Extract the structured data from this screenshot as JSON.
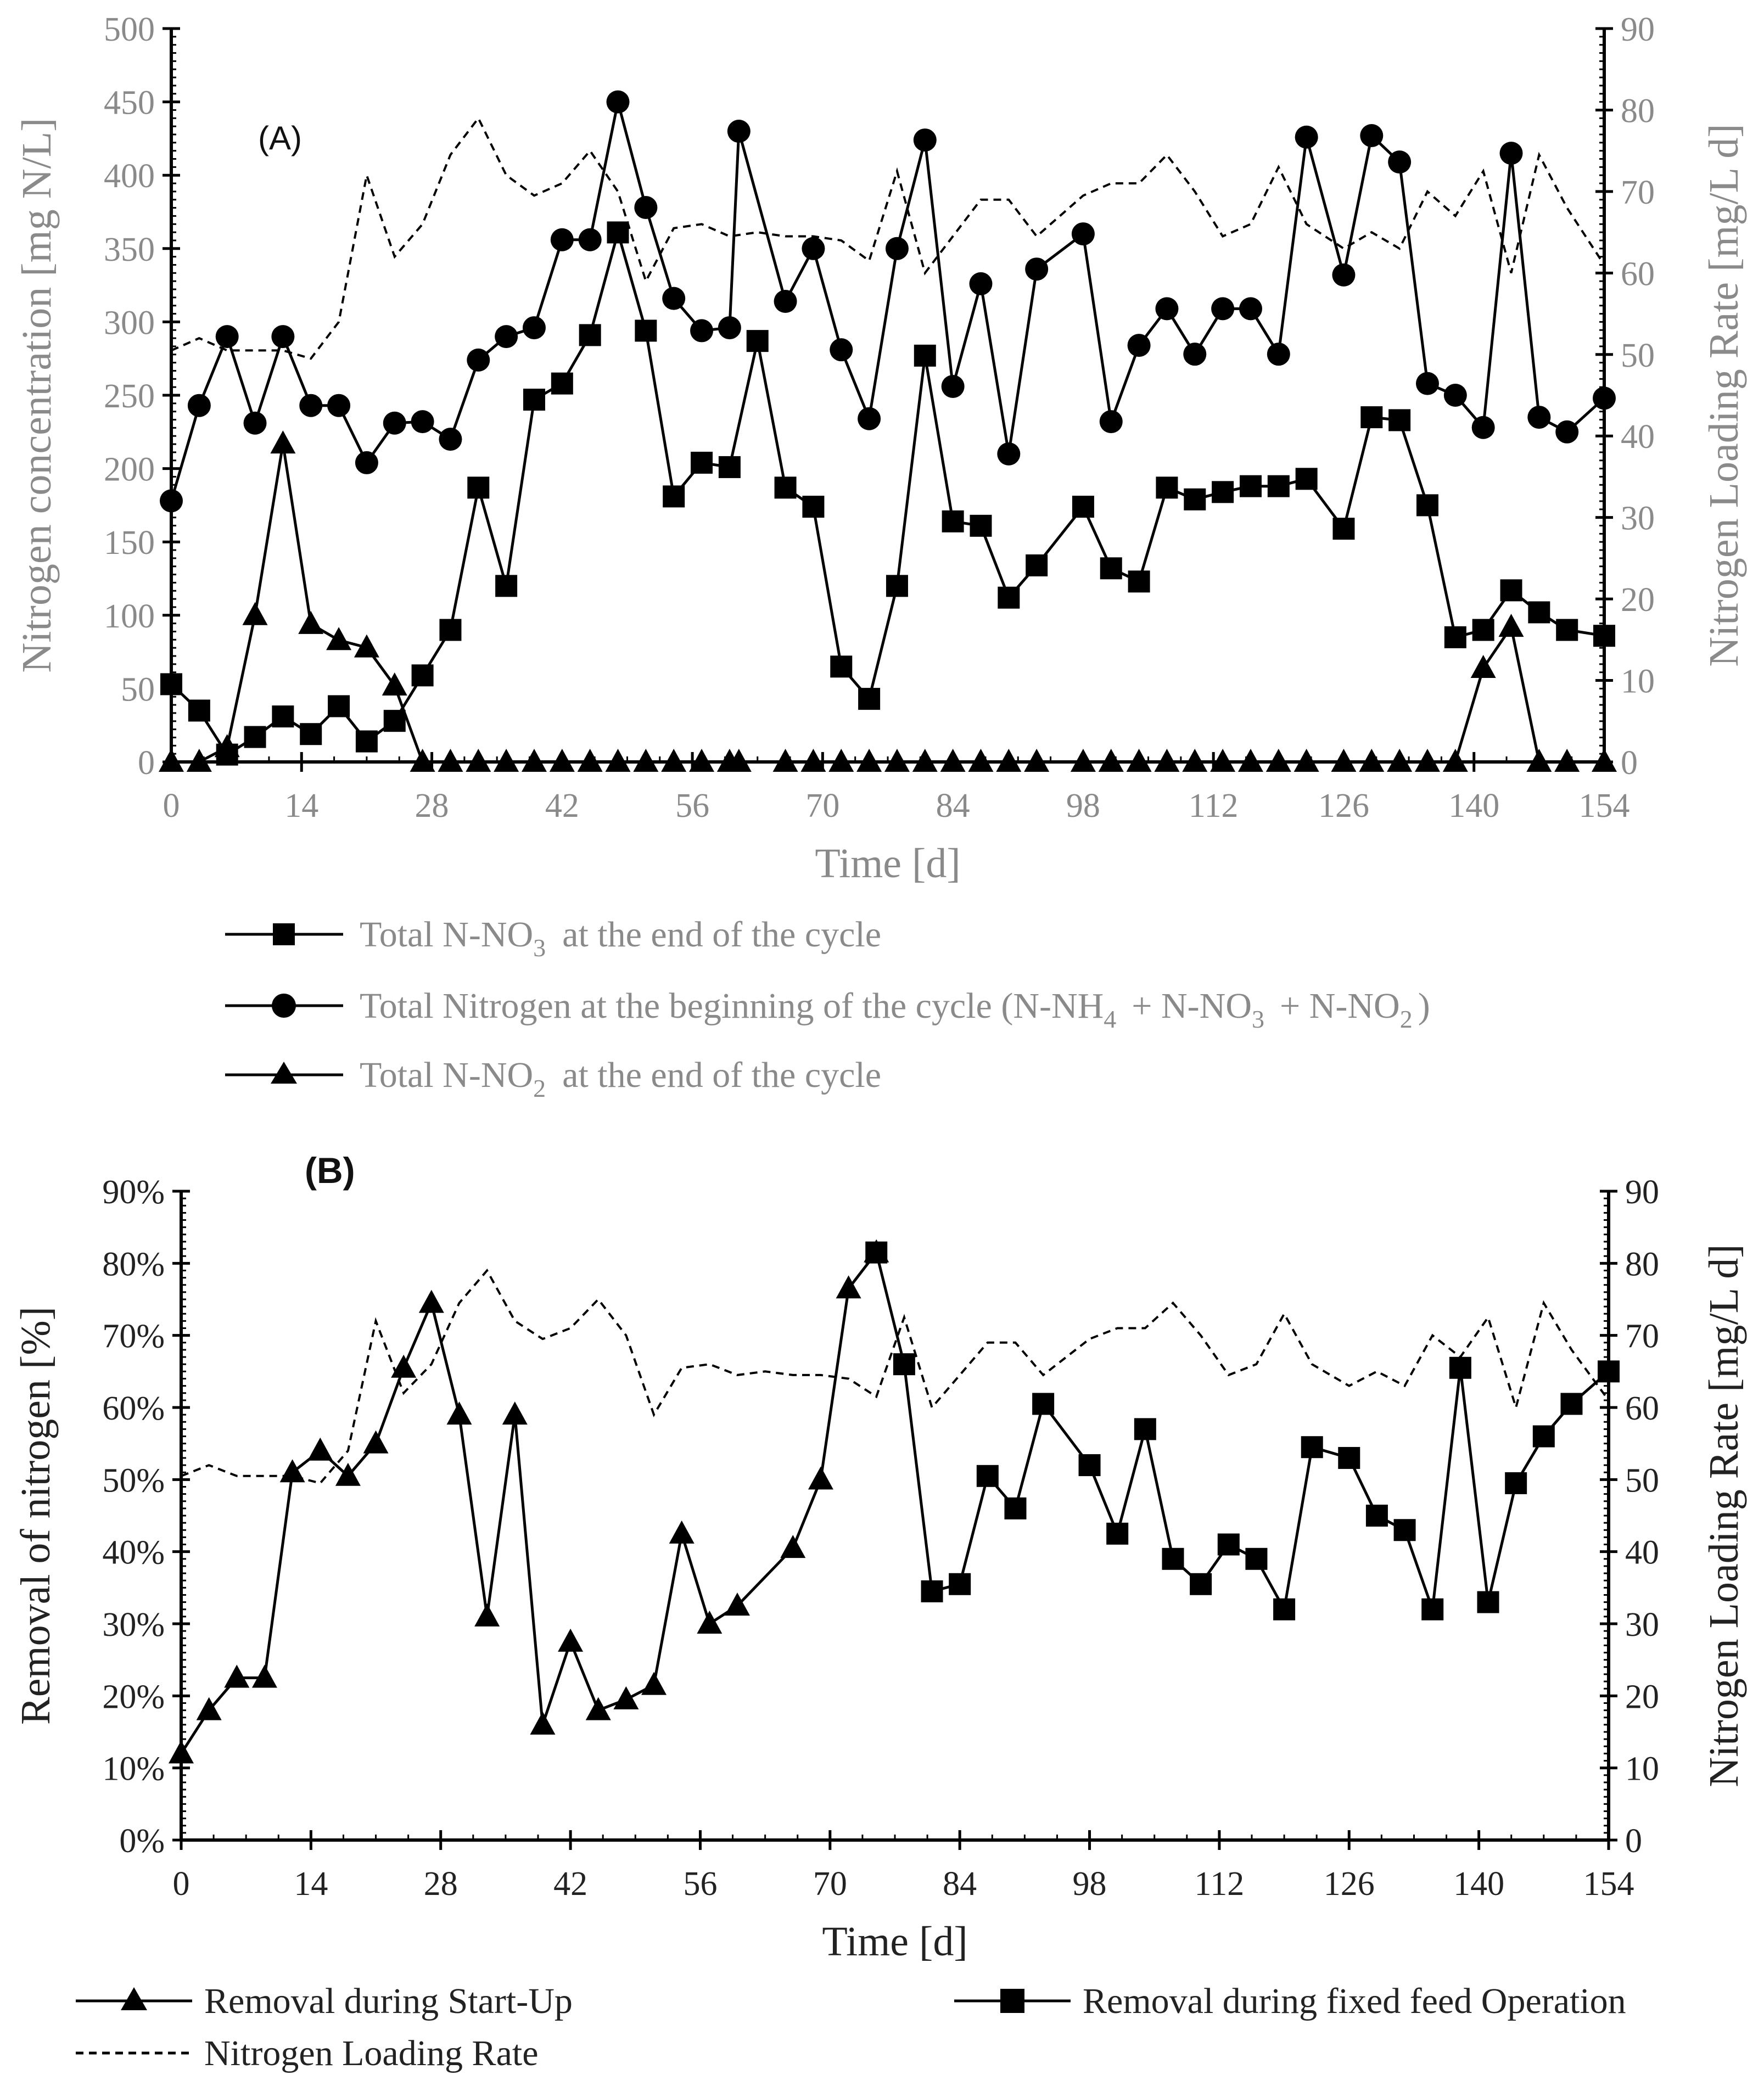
{
  "chart_data": [
    {
      "panel": "A",
      "panel_label": "(A)",
      "type": "line",
      "xlabel": "Time [d]",
      "ylabel_left": "Nitrogen concentration [mg N/L]",
      "ylabel_right": "Nitrogen Loading Rate  [mg/L d]",
      "xlim": [
        0,
        154
      ],
      "ylim_left": [
        0,
        500
      ],
      "ylim_right": [
        0,
        90
      ],
      "xticks": [
        0,
        14,
        28,
        42,
        56,
        70,
        84,
        98,
        112,
        126,
        140,
        154
      ],
      "yticks_left": [
        0,
        50,
        100,
        150,
        200,
        250,
        300,
        350,
        400,
        450,
        500
      ],
      "yticks_right": [
        0,
        10,
        20,
        30,
        40,
        50,
        60,
        70,
        80,
        90
      ],
      "series": [
        {
          "name": "Total N-NO3 at the end of the cycle",
          "legend_main": "Total N-NO",
          "legend_sub": "3",
          "legend_rest": "at the end of the cycle",
          "marker": "square",
          "axis": "left",
          "x": [
            0,
            3,
            6,
            9,
            12,
            15,
            18,
            21,
            24,
            27,
            30,
            33,
            36,
            39,
            42,
            45,
            48,
            51,
            54,
            57,
            60,
            63,
            66,
            69,
            72,
            75,
            78,
            81,
            84,
            87,
            90,
            93,
            98,
            101,
            104,
            107,
            110,
            113,
            116,
            119,
            122,
            126,
            129,
            132,
            135,
            138,
            141,
            144,
            147,
            150,
            154
          ],
          "y": [
            53,
            35,
            5,
            17,
            31,
            19,
            38,
            14,
            28,
            59,
            90,
            187,
            120,
            247,
            258,
            291,
            361,
            294,
            181,
            204,
            201,
            287,
            187,
            174,
            65,
            43,
            120,
            277,
            164,
            161,
            112,
            134,
            174,
            132,
            123,
            187,
            179,
            184,
            188,
            188,
            193,
            159,
            235,
            233,
            175,
            85,
            90,
            117,
            102,
            90,
            86
          ]
        },
        {
          "name": "Total Nitrogen at the beginning of the cycle (N-NH4 + N-NO3 + N-NO2)",
          "legend_main": "Total Nitrogen at the beginning of the cycle (N-NH",
          "legend_sub1": "4",
          "legend_mid1": "+ N-NO",
          "legend_sub2": "3",
          "legend_mid2": "+ N-NO",
          "legend_sub3": "2",
          "legend_end": ")",
          "marker": "circle",
          "axis": "left",
          "x": [
            0,
            3,
            6,
            9,
            12,
            15,
            18,
            21,
            24,
            27,
            30,
            33,
            36,
            39,
            42,
            45,
            48,
            51,
            54,
            57,
            60,
            61,
            66,
            69,
            72,
            75,
            78,
            81,
            84,
            87,
            90,
            93,
            98,
            101,
            104,
            107,
            110,
            113,
            116,
            119,
            122,
            126,
            129,
            132,
            135,
            138,
            141,
            144,
            147,
            150,
            154
          ],
          "y": [
            178,
            243,
            290,
            231,
            290,
            243,
            243,
            204,
            231,
            232,
            220,
            274,
            290,
            296,
            356,
            356,
            450,
            378,
            316,
            294,
            296,
            430,
            314,
            350,
            281,
            234,
            350,
            424,
            256,
            326,
            210,
            336,
            360,
            232,
            284,
            309,
            278,
            309,
            309,
            278,
            426,
            332,
            427,
            409,
            258,
            250,
            228,
            415,
            235,
            225,
            248
          ]
        },
        {
          "name": "Total N-NO2 at the end of the cycle",
          "legend_main": "Total N-NO",
          "legend_sub": "2",
          "legend_rest": "at the end of the cycle",
          "marker": "triangle",
          "axis": "left",
          "x": [
            0,
            3,
            6,
            9,
            12,
            15,
            18,
            21,
            24,
            27,
            30,
            33,
            36,
            39,
            42,
            45,
            48,
            51,
            54,
            57,
            60,
            61,
            66,
            69,
            72,
            75,
            78,
            81,
            84,
            87,
            90,
            93,
            98,
            101,
            104,
            107,
            110,
            113,
            116,
            119,
            122,
            126,
            129,
            132,
            135,
            138,
            141,
            144,
            147,
            150,
            154
          ],
          "y": [
            0,
            0,
            10,
            100,
            217,
            94,
            83,
            78,
            52,
            0,
            0,
            0,
            0,
            0,
            0,
            0,
            0,
            0,
            0,
            0,
            0,
            0,
            0,
            0,
            0,
            0,
            0,
            0,
            0,
            0,
            0,
            0,
            0,
            0,
            0,
            0,
            0,
            0,
            0,
            0,
            0,
            0,
            0,
            0,
            0,
            0,
            64,
            92,
            0,
            0,
            0
          ]
        },
        {
          "name": "Nitrogen Loading Rate",
          "marker": "none",
          "style": "dashed",
          "axis": "right",
          "x": [
            0,
            3,
            6,
            9,
            12,
            15,
            18,
            21,
            24,
            27,
            30,
            33,
            36,
            39,
            42,
            45,
            48,
            51,
            54,
            57,
            60,
            63,
            66,
            69,
            72,
            75,
            78,
            81,
            84,
            87,
            90,
            93,
            98,
            101,
            104,
            107,
            110,
            113,
            116,
            119,
            122,
            126,
            129,
            132,
            135,
            138,
            141,
            144,
            147,
            150,
            154
          ],
          "y": [
            50.5,
            52,
            50.5,
            50.5,
            50.5,
            49.5,
            54,
            72,
            62,
            66,
            74.5,
            79,
            72,
            69.5,
            71,
            75,
            70,
            59,
            65.5,
            66,
            64.5,
            65,
            64.5,
            64.5,
            64,
            61.5,
            72.5,
            60,
            64.5,
            69,
            69,
            64.5,
            69.5,
            71,
            71,
            74.5,
            70,
            64.5,
            66,
            73,
            66,
            63,
            65,
            63,
            70,
            67,
            72.5,
            60,
            74.5,
            68,
            61
          ]
        }
      ]
    },
    {
      "panel": "B",
      "panel_label": "(B)",
      "type": "line",
      "xlabel": "Time [d]",
      "ylabel_left": "Removal of nitrogen [%]",
      "ylabel_right": "Nitrogen Loading Rate [mg/L d]",
      "xlim": [
        0,
        154
      ],
      "ylim_left": [
        0,
        90
      ],
      "ylim_right": [
        0,
        90
      ],
      "xticks": [
        0,
        14,
        28,
        42,
        56,
        70,
        84,
        98,
        112,
        126,
        140,
        154
      ],
      "yticks_left": [
        "0%",
        "10%",
        "20%",
        "30%",
        "40%",
        "50%",
        "60%",
        "70%",
        "80%",
        "90%"
      ],
      "yticks_right": [
        0,
        10,
        20,
        30,
        40,
        50,
        60,
        70,
        80,
        90
      ],
      "series": [
        {
          "name": "Removal during Start-Up",
          "marker": "triangle",
          "axis": "left",
          "x": [
            0,
            3,
            6,
            9,
            12,
            15,
            18,
            21,
            24,
            27,
            30,
            33,
            36,
            39,
            42,
            45,
            48,
            51,
            54,
            57,
            60,
            66,
            69,
            72,
            75
          ],
          "y": [
            12,
            18,
            22.5,
            22.5,
            51,
            54,
            50.5,
            55,
            65.5,
            74.5,
            59,
            31,
            59,
            16,
            27.5,
            18,
            19.5,
            21.5,
            42.5,
            30,
            32.5,
            40.5,
            50,
            76.5,
            81.5
          ]
        },
        {
          "name": "Removal during fixed feed Operation",
          "marker": "square",
          "axis": "left",
          "x": [
            75,
            78,
            81,
            84,
            87,
            90,
            93,
            98,
            101,
            104,
            107,
            110,
            113,
            116,
            119,
            122,
            126,
            129,
            132,
            135,
            138,
            141,
            144,
            147,
            150,
            154
          ],
          "y": [
            81.5,
            66,
            34.5,
            35.5,
            50.5,
            46,
            60.5,
            52,
            42.5,
            57,
            39,
            35.5,
            41,
            39,
            32,
            54.5,
            53,
            45,
            43,
            32,
            65.5,
            33,
            49.5,
            56,
            60.5,
            65
          ]
        },
        {
          "name": "Nitrogen Loading Rate",
          "marker": "none",
          "style": "dashed",
          "axis": "right",
          "x": [
            0,
            3,
            6,
            9,
            12,
            15,
            18,
            21,
            24,
            27,
            30,
            33,
            36,
            39,
            42,
            45,
            48,
            51,
            54,
            57,
            60,
            63,
            66,
            69,
            72,
            75,
            78,
            81,
            84,
            87,
            90,
            93,
            98,
            101,
            104,
            107,
            110,
            113,
            116,
            119,
            122,
            126,
            129,
            132,
            135,
            138,
            141,
            144,
            147,
            150,
            154
          ],
          "y": [
            50.5,
            52,
            50.5,
            50.5,
            50.5,
            49.5,
            54,
            72,
            62,
            66,
            74.5,
            79,
            72,
            69.5,
            71,
            75,
            70,
            59,
            65.5,
            66,
            64.5,
            65,
            64.5,
            64.5,
            64,
            61.5,
            72.5,
            60,
            64.5,
            69,
            69,
            64.5,
            69.5,
            71,
            71,
            74.5,
            70,
            64.5,
            66,
            73,
            66,
            63,
            65,
            63,
            70,
            67,
            72.5,
            60,
            74.5,
            68,
            61
          ]
        }
      ]
    }
  ]
}
